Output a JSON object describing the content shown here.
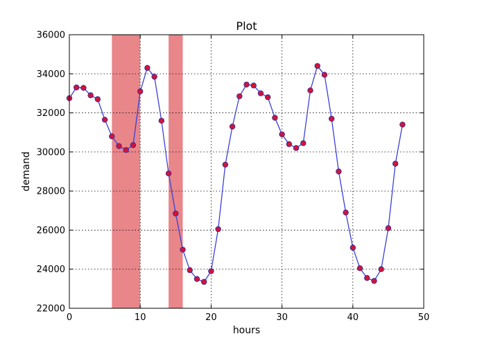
{
  "chart_data": {
    "type": "line",
    "title": "Plot",
    "xlabel": "hours",
    "ylabel": "demand",
    "xlim": [
      0,
      50
    ],
    "ylim": [
      22000,
      36000
    ],
    "xticks": [
      "0",
      "10",
      "20",
      "30",
      "40",
      "50"
    ],
    "yticks": [
      "22000",
      "24000",
      "26000",
      "28000",
      "30000",
      "32000",
      "34000",
      "36000"
    ],
    "grid": true,
    "markers": true,
    "colors": {
      "line": "#3a3fd8",
      "marker_fill": "#d0143c",
      "marker_edge": "#2a2a9a",
      "shade": "#e8868a"
    },
    "shaded_regions": [
      {
        "x_start": 6,
        "x_end": 10
      },
      {
        "x_start": 14,
        "x_end": 16
      }
    ],
    "series": [
      {
        "x": [
          0,
          1,
          2,
          3,
          4,
          5,
          6,
          7,
          8,
          9,
          10,
          11,
          12,
          13,
          14,
          15,
          16,
          17,
          18,
          19,
          20,
          21,
          22,
          23,
          24,
          25,
          26,
          27,
          28,
          29,
          30,
          31,
          32,
          33,
          34,
          35,
          36,
          37,
          38,
          39,
          40,
          41,
          42,
          43,
          44,
          45,
          46,
          47
        ],
        "values": [
          32750,
          33300,
          33280,
          32900,
          32700,
          31650,
          30800,
          30300,
          30100,
          30350,
          33100,
          34300,
          33850,
          31600,
          28900,
          26850,
          25000,
          23950,
          23500,
          23350,
          23900,
          26050,
          29350,
          31300,
          32850,
          33450,
          33400,
          33000,
          32800,
          31750,
          30900,
          30400,
          30200,
          30450,
          33150,
          34400,
          33950,
          31700,
          29000,
          26900,
          25100,
          24050,
          23550,
          23400,
          24000,
          26100,
          29400,
          31400
        ]
      }
    ]
  }
}
